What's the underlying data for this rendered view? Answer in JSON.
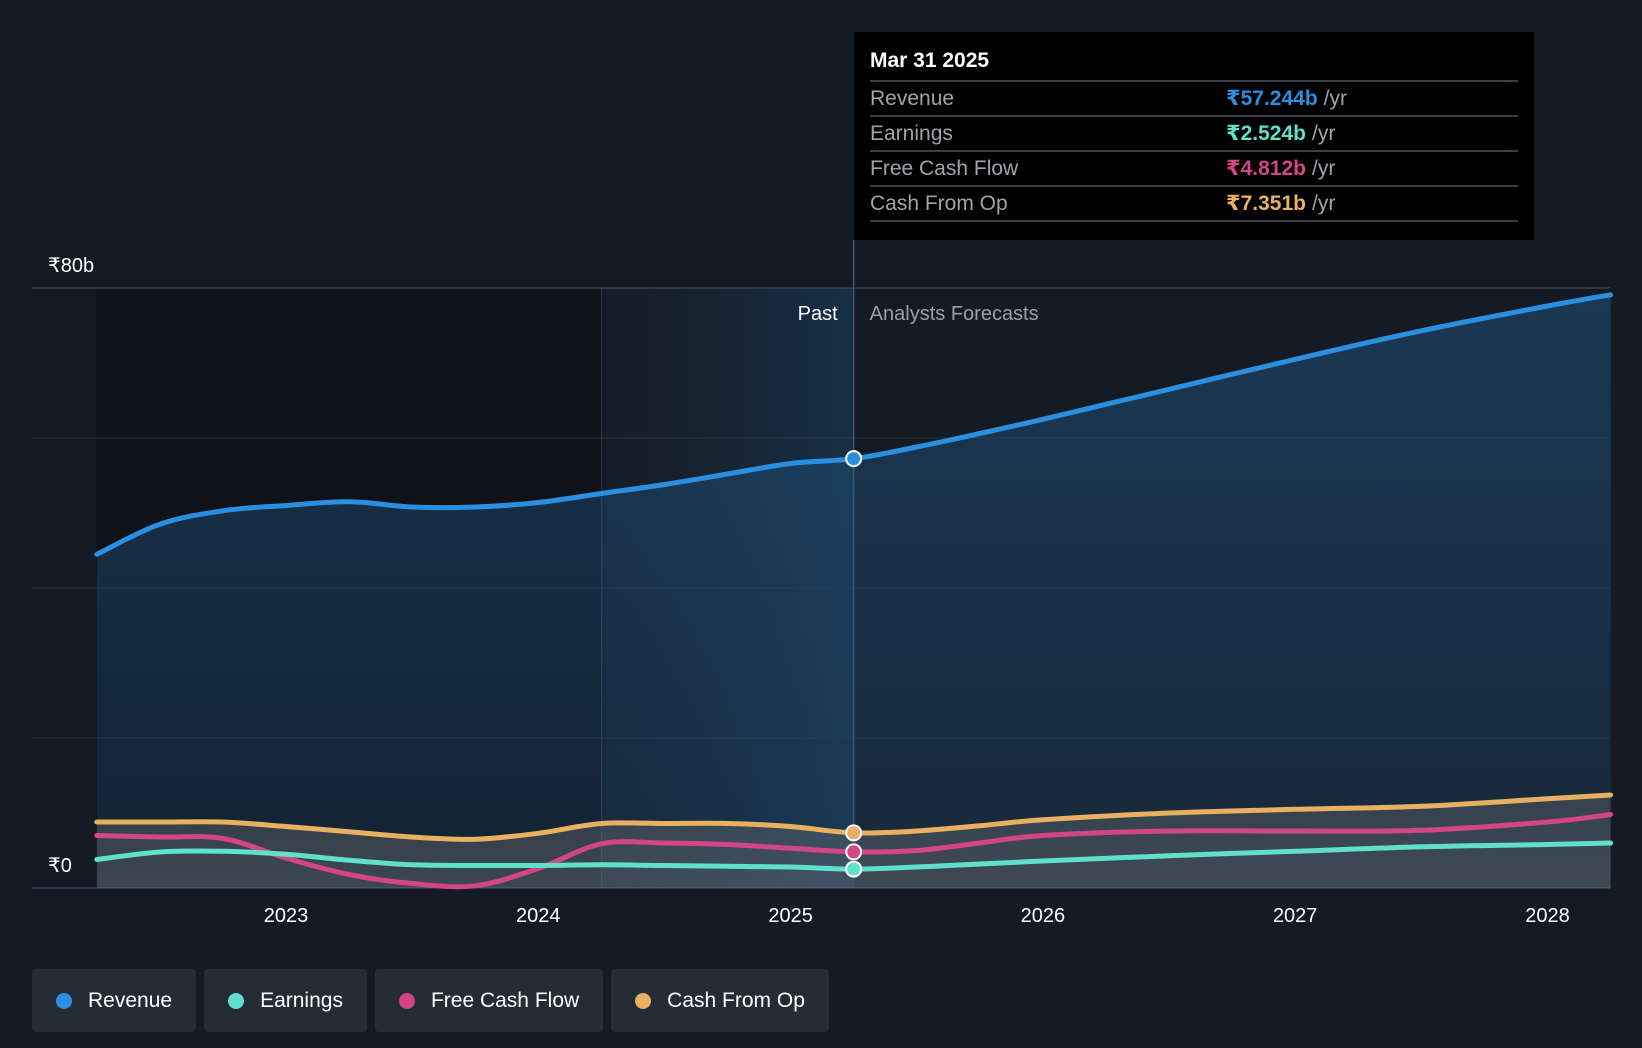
{
  "chart_data": {
    "type": "area",
    "currency_symbol": "₹",
    "y_axis": {
      "top_label": "₹80b",
      "bottom_label": "₹0",
      "ylim": [
        0,
        80
      ],
      "unit": "b"
    },
    "x_axis": {
      "ticks": [
        "2023",
        "2024",
        "2025",
        "2026",
        "2027",
        "2028"
      ]
    },
    "grid": true,
    "regions": {
      "past_label": "Past",
      "forecast_label": "Analysts Forecasts",
      "divider_date": "2025.25"
    },
    "series": [
      {
        "name": "Revenue",
        "color": "#2a8fe0",
        "points": [
          [
            2022.25,
            44.5
          ],
          [
            2022.5,
            48.5
          ],
          [
            2022.75,
            50.3
          ],
          [
            2023,
            51
          ],
          [
            2023.25,
            51.5
          ],
          [
            2023.5,
            50.8
          ],
          [
            2023.75,
            50.8
          ],
          [
            2024,
            51.4
          ],
          [
            2024.25,
            52.6
          ],
          [
            2024.5,
            53.8
          ],
          [
            2024.75,
            55.2
          ],
          [
            2025,
            56.6
          ],
          [
            2025.25,
            57.244
          ],
          [
            2025.5,
            58.8
          ],
          [
            2025.75,
            60.6
          ],
          [
            2026,
            62.5
          ],
          [
            2026.5,
            66.5
          ],
          [
            2027,
            70.5
          ],
          [
            2027.5,
            74.3
          ],
          [
            2028,
            77.6
          ],
          [
            2028.25,
            79.1
          ]
        ]
      },
      {
        "name": "Earnings",
        "color": "#5ee0cc",
        "points": [
          [
            2022.25,
            3.8
          ],
          [
            2022.5,
            4.8
          ],
          [
            2022.75,
            4.9
          ],
          [
            2023,
            4.5
          ],
          [
            2023.25,
            3.7
          ],
          [
            2023.5,
            3.1
          ],
          [
            2023.75,
            3.0
          ],
          [
            2024,
            3.0
          ],
          [
            2024.25,
            3.1
          ],
          [
            2024.5,
            3.0
          ],
          [
            2024.75,
            2.9
          ],
          [
            2025,
            2.8
          ],
          [
            2025.25,
            2.524
          ],
          [
            2025.5,
            2.8
          ],
          [
            2025.75,
            3.2
          ],
          [
            2026,
            3.6
          ],
          [
            2026.5,
            4.3
          ],
          [
            2027,
            4.9
          ],
          [
            2027.5,
            5.5
          ],
          [
            2028,
            5.8
          ],
          [
            2028.25,
            6.0
          ]
        ]
      },
      {
        "name": "Free Cash Flow",
        "color": "#d44586",
        "points": [
          [
            2022.25,
            7.0
          ],
          [
            2022.5,
            6.8
          ],
          [
            2022.75,
            6.6
          ],
          [
            2023,
            4.0
          ],
          [
            2023.25,
            1.8
          ],
          [
            2023.5,
            0.6
          ],
          [
            2023.75,
            0.3
          ],
          [
            2024,
            2.6
          ],
          [
            2024.25,
            5.9
          ],
          [
            2024.5,
            6.0
          ],
          [
            2024.75,
            5.8
          ],
          [
            2025,
            5.3
          ],
          [
            2025.25,
            4.812
          ],
          [
            2025.5,
            5.0
          ],
          [
            2025.75,
            6.0
          ],
          [
            2026,
            7.0
          ],
          [
            2026.5,
            7.6
          ],
          [
            2027,
            7.6
          ],
          [
            2027.5,
            7.7
          ],
          [
            2028,
            8.8
          ],
          [
            2028.25,
            9.8
          ]
        ]
      },
      {
        "name": "Cash From Op",
        "color": "#e8b060",
        "points": [
          [
            2022.25,
            8.8
          ],
          [
            2022.5,
            8.8
          ],
          [
            2022.75,
            8.8
          ],
          [
            2023,
            8.2
          ],
          [
            2023.25,
            7.5
          ],
          [
            2023.5,
            6.8
          ],
          [
            2023.75,
            6.5
          ],
          [
            2024,
            7.3
          ],
          [
            2024.25,
            8.6
          ],
          [
            2024.5,
            8.6
          ],
          [
            2024.75,
            8.6
          ],
          [
            2025,
            8.2
          ],
          [
            2025.25,
            7.351
          ],
          [
            2025.5,
            7.6
          ],
          [
            2025.75,
            8.3
          ],
          [
            2026,
            9.1
          ],
          [
            2026.5,
            10.0
          ],
          [
            2027,
            10.5
          ],
          [
            2027.5,
            10.9
          ],
          [
            2028,
            11.9
          ],
          [
            2028.25,
            12.4
          ]
        ]
      }
    ]
  },
  "tooltip": {
    "date": "Mar 31 2025",
    "rows": [
      {
        "label": "Revenue",
        "value": "₹57.244b",
        "unit": "/yr",
        "color": "#2a8fe0"
      },
      {
        "label": "Earnings",
        "value": "₹2.524b",
        "unit": "/yr",
        "color": "#5ee0cc"
      },
      {
        "label": "Free Cash Flow",
        "value": "₹4.812b",
        "unit": "/yr",
        "color": "#d44586"
      },
      {
        "label": "Cash From Op",
        "value": "₹7.351b",
        "unit": "/yr",
        "color": "#e8b060"
      }
    ]
  },
  "legend": [
    {
      "label": "Revenue",
      "color": "#2a8fe0"
    },
    {
      "label": "Earnings",
      "color": "#5ee0cc"
    },
    {
      "label": "Free Cash Flow",
      "color": "#d44586"
    },
    {
      "label": "Cash From Op",
      "color": "#e8b060"
    }
  ]
}
